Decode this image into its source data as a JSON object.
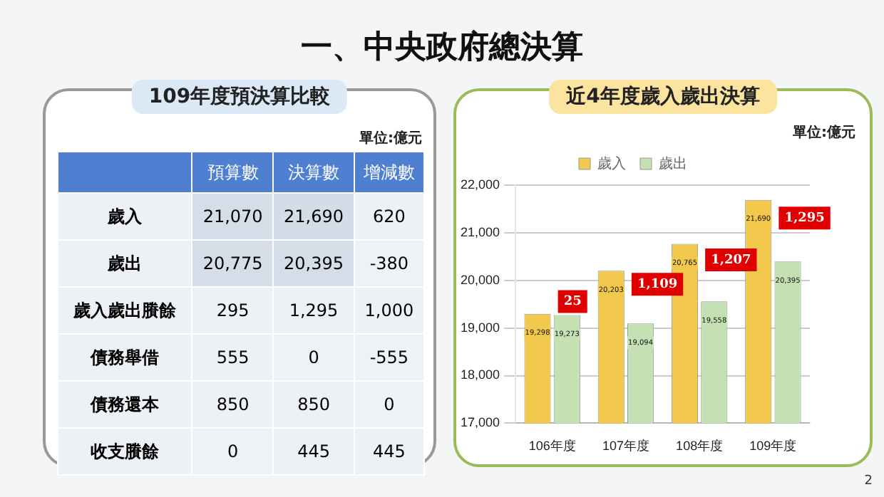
{
  "chart_data": [
    {
      "type": "heatmap",
      "title": "109年度預決算比較",
      "annotations": [
        "一、中央政府總決算",
        "單位:億元",
        "2"
      ],
      "categories": [
        "預算數",
        "決算數",
        "增減數"
      ],
      "y_categories": [
        "歲入",
        "歲出",
        "歲入歲出賸餘",
        "債務舉借",
        "債務還本",
        "收支賸餘"
      ],
      "cells": [
        [
          21070,
          21690,
          620
        ],
        [
          20775,
          20395,
          -380
        ],
        [
          295,
          1295,
          1000
        ],
        [
          555,
          0,
          -555
        ],
        [
          850,
          850,
          0
        ],
        [
          0,
          445,
          445
        ]
      ],
      "cell_labels": [
        [
          "21,070",
          "21,690",
          "620"
        ],
        [
          "20,775",
          "20,395",
          "-380"
        ],
        [
          "295",
          "1,295",
          "1,000"
        ],
        [
          "555",
          "0",
          "-555"
        ],
        [
          "850",
          "850",
          "0"
        ],
        [
          "0",
          "445",
          "445"
        ]
      ]
    },
    {
      "type": "bar",
      "title": "近4年度歲入歲出決算",
      "categories": [
        "106年度",
        "107年度",
        "108年度",
        "109年度"
      ],
      "series": [
        {
          "name": "歲入",
          "color": "#f2c94c",
          "values": [
            19298,
            20203,
            20765,
            21690
          ],
          "value_labels": [
            "19,298",
            "20,203",
            "20,765",
            "21,690"
          ]
        },
        {
          "name": "歲出",
          "color": "#c5e0b3",
          "values": [
            19273,
            19094,
            19558,
            20395
          ],
          "value_labels": [
            "19,273",
            "19,094",
            "19,558",
            "20,395"
          ]
        }
      ],
      "ylim": [
        17000,
        22000
      ],
      "yticks": [
        {
          "value": 17000,
          "label": "17,000"
        },
        {
          "value": 18000,
          "label": "18,000"
        },
        {
          "value": 19000,
          "label": "19,000"
        },
        {
          "value": 20000,
          "label": "20,000"
        },
        {
          "value": 21000,
          "label": "21,000"
        },
        {
          "value": 22000,
          "label": "22,000"
        }
      ],
      "grid": "y",
      "legend": "top",
      "annotations": [
        "單位:億元",
        {
          "text": "25",
          "x": "106年度",
          "y": 19285
        },
        {
          "text": "1,109",
          "x": "107年度",
          "y": 19650
        },
        {
          "text": "1,207",
          "x": "108年度",
          "y": 20160
        },
        {
          "text": "1,295",
          "x": "109年度",
          "y": 21040
        }
      ]
    }
  ]
}
